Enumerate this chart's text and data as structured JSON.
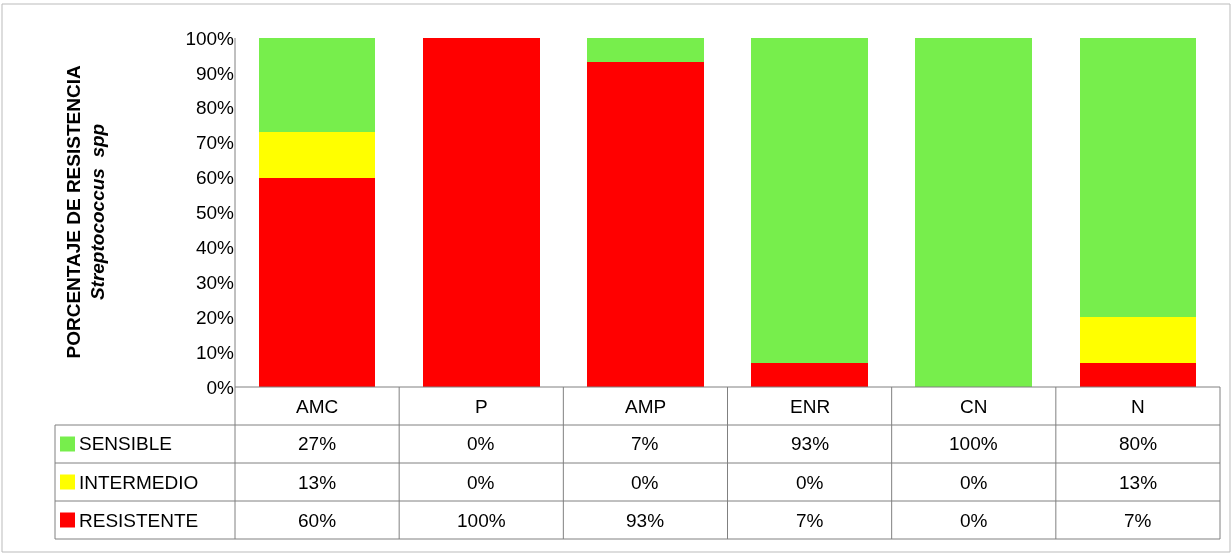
{
  "chart_data": {
    "type": "bar",
    "stacked": true,
    "ylabel": "PORCENTAJE DE RESISTENCIA\nStreptococcus  spp",
    "categories": [
      "AMC",
      "P",
      "AMP",
      "ENR",
      "CN",
      "N"
    ],
    "series": [
      {
        "name": "RESISTENTE",
        "color": "#ff0000",
        "values": [
          60,
          100,
          93,
          7,
          0,
          7
        ],
        "value_labels": [
          "60%",
          "100%",
          "93%",
          "7%",
          "0%",
          "7%"
        ]
      },
      {
        "name": "INTERMEDIO",
        "color": "#ffff00",
        "values": [
          13,
          0,
          0,
          0,
          0,
          13
        ],
        "value_labels": [
          "13%",
          "0%",
          "0%",
          "0%",
          "0%",
          "13%"
        ]
      },
      {
        "name": "SENSIBLE",
        "color": "#77ee4c",
        "values": [
          27,
          0,
          7,
          93,
          100,
          80
        ],
        "value_labels": [
          "27%",
          "0%",
          "7%",
          "93%",
          "100%",
          "80%"
        ]
      }
    ],
    "ylim": [
      0,
      100
    ],
    "yticks": [
      {
        "value": 0,
        "label": "0%"
      },
      {
        "value": 10,
        "label": "10%"
      },
      {
        "value": 20,
        "label": "20%"
      },
      {
        "value": 30,
        "label": "30%"
      },
      {
        "value": 40,
        "label": "40%"
      },
      {
        "value": 50,
        "label": "50%"
      },
      {
        "value": 60,
        "label": "60%"
      },
      {
        "value": 70,
        "label": "70%"
      },
      {
        "value": 80,
        "label": "80%"
      },
      {
        "value": 90,
        "label": "90%"
      },
      {
        "value": 100,
        "label": "100%"
      }
    ],
    "grid": false,
    "legend": "bottom"
  }
}
